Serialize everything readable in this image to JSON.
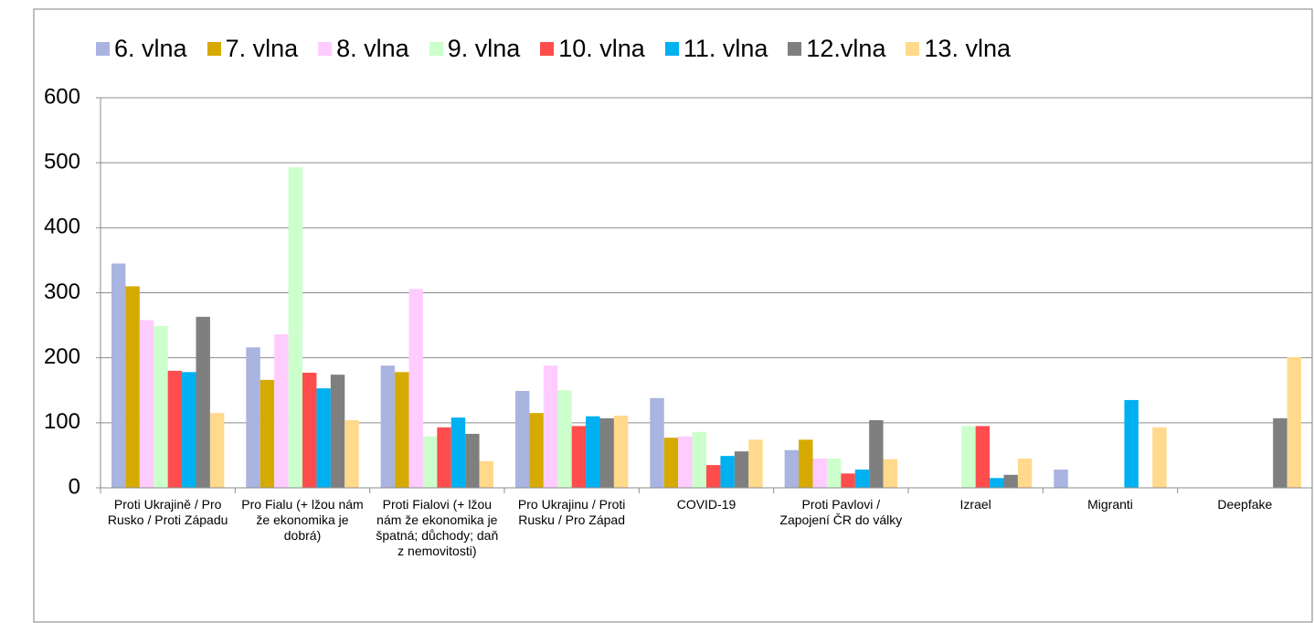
{
  "chart_data": {
    "type": "bar",
    "categories": [
      "Proti Ukrajině / Pro Rusko / Proti Západu",
      "Pro Fialu (+ lžou nám že ekonomika je dobrá)",
      "Proti Fialovi (+ lžou nám že ekonomika je špatná; důchody; daň z nemovitosti)",
      "Pro Ukrajinu / Proti Rusku / Pro Západ",
      "COVID-19",
      "Proti Pavlovi / Zapojení ČR do války",
      "Izrael",
      "Migranti",
      "Deepfake"
    ],
    "series": [
      {
        "name": "6. vlna",
        "color": "#aab4e0",
        "values": [
          345,
          216,
          188,
          149,
          138,
          58,
          null,
          28,
          null
        ]
      },
      {
        "name": "7. vlna",
        "color": "#d6aa00",
        "values": [
          310,
          166,
          178,
          115,
          77,
          74,
          null,
          null,
          null
        ]
      },
      {
        "name": "8. vlna",
        "color": "#ffccff",
        "values": [
          258,
          236,
          306,
          188,
          79,
          45,
          null,
          null,
          null
        ]
      },
      {
        "name": "9. vlna",
        "color": "#ccffcc",
        "values": [
          249,
          493,
          79,
          150,
          86,
          45,
          95,
          null,
          null
        ]
      },
      {
        "name": "10. vlna",
        "color": "#ff4d4d",
        "values": [
          180,
          177,
          93,
          95,
          35,
          22,
          95,
          null,
          null
        ]
      },
      {
        "name": "11. vlna",
        "color": "#00b0f0",
        "values": [
          178,
          153,
          108,
          110,
          49,
          28,
          15,
          135,
          null
        ]
      },
      {
        "name": "12.vlna",
        "color": "#7f7f7f",
        "values": [
          263,
          174,
          83,
          107,
          56,
          104,
          20,
          null,
          107
        ]
      },
      {
        "name": "13. vlna",
        "color": "#ffd98c",
        "values": [
          115,
          104,
          41,
          111,
          74,
          44,
          45,
          93,
          201
        ]
      }
    ],
    "ylim": [
      0,
      600
    ],
    "yticks": [
      0,
      100,
      200,
      300,
      400,
      500,
      600
    ],
    "grid": true,
    "legend": "top"
  }
}
